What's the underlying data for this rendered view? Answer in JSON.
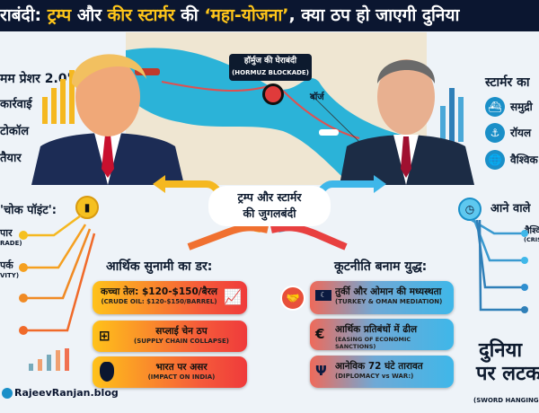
{
  "title": {
    "prefix": "राबंदी: ",
    "trump": "ट्रम्प",
    "and": " और ",
    "starmer": "कीर स्टार्मर",
    "of": " की ",
    "plan": "‘महा-योजना’",
    "rest": ", क्या ठप हो जाएगी दुनिया"
  },
  "left_panel": {
    "heading": "मम प्रेशर 2.0':",
    "items": [
      "कार्रवाई",
      "टोकॉल",
      "तैयार"
    ]
  },
  "map": {
    "label_hi": "हॉर्मुज की घेराबंदी",
    "label_en": "(HORMUZ BLOCKADE)",
    "barge": "बॉर्ज"
  },
  "right_panel": {
    "heading": "स्टार्मर का",
    "items": [
      {
        "icon": "ship-icon",
        "text": "समुद्री"
      },
      {
        "icon": "navy-ship-icon",
        "text": "रॉयल"
      },
      {
        "icon": "globe-icon",
        "text": "वैश्विक"
      }
    ]
  },
  "center": {
    "line1": "ट्रम्प और स्टार्मर",
    "line2": "की जुगलबंदी"
  },
  "choke": {
    "heading": "'चोक पॉइंट':",
    "items": [
      {
        "hi": "पार",
        "en": "RADE)"
      },
      {
        "hi": "पर्क",
        "en": "VITY)"
      }
    ]
  },
  "economic": {
    "heading": "आर्थिक सुनामी का डर:",
    "items": [
      {
        "hi": "कच्चा तेल: $120-$150/बैरल",
        "en": "(CRUDE OIL: $120-$150/BARREL)",
        "icon": "rising-chart-icon"
      },
      {
        "hi": "सप्लाई चेन ठप",
        "en": "(SUPPLY CHAIN COLLAPSE)",
        "icon": "hierarchy-icon"
      },
      {
        "hi": "भारत पर असर",
        "en": "(IMPACT ON INDIA)",
        "icon": "india-map-icon"
      }
    ]
  },
  "diplomacy": {
    "heading": "कूटनीति बनाम युद्ध:",
    "items": [
      {
        "hi": "तुर्की और ओमान की मध्यस्थता",
        "en": "(TURKEY & OMAN MEDIATION)",
        "icon": "turkey-flag-icon"
      },
      {
        "hi": "आर्थिक प्रतिबंधों में ढील",
        "en": "(EASING OF ECONOMIC SANCTIONS)",
        "icon": "euro-icon"
      },
      {
        "hi": "आनेविक 72 घंटे तारावत",
        "en": "(DIPLOMACY vs WAR:)",
        "icon": "pillar-icon"
      }
    ]
  },
  "future": {
    "heading": "आने वाले",
    "item_hi": "वैश्वि",
    "item_en": "(CRIS"
  },
  "sword": {
    "line1": "दुनिया",
    "line2": "पर लटक",
    "en": "(SWORD HANGING OV"
  },
  "credit": "RajeevRanjan.blog",
  "colors": {
    "navy": "#0b1630",
    "yellow": "#ffc61a",
    "orange": "#f08a24",
    "red": "#ef3b3b",
    "blue": "#3fb7e9"
  }
}
